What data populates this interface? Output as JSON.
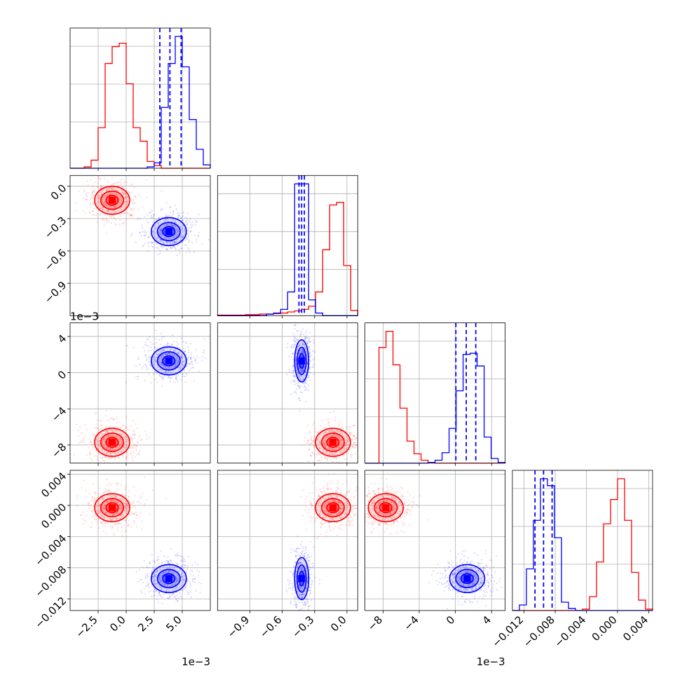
{
  "chart_data": {
    "type": "corner",
    "colors": {
      "series_a": "#ff0000",
      "series_b": "#0000ff",
      "grid": "#b0b0b0"
    },
    "series": [
      {
        "color": "#ff0000"
      },
      {
        "color": "#0000ff",
        "quantiles_marked": true
      }
    ],
    "parameters": [
      {
        "range": [
          -5.0,
          7.5
        ],
        "offset_label": "1e−3",
        "ticks": [
          -2.5,
          0.0,
          2.5,
          5.0
        ],
        "tick_labels": [
          "−2.5",
          "0.0",
          "2.5",
          "5.0"
        ],
        "hist": {
          "bins": [
            -5.0,
            -4.375,
            -3.75,
            -3.125,
            -2.5,
            -1.875,
            -1.25,
            -0.625,
            0.0,
            0.625,
            1.25,
            1.875,
            2.5,
            3.125,
            3.75,
            4.375,
            5.0,
            5.625,
            6.25,
            6.875,
            7.5
          ],
          "red": [
            0,
            0,
            2,
            12,
            60,
            155,
            180,
            185,
            125,
            60,
            40,
            10,
            4,
            0,
            0,
            0,
            0,
            0,
            0,
            0
          ],
          "blue": [
            0,
            0,
            0,
            0,
            0,
            0,
            0,
            0,
            0,
            0,
            0,
            2,
            8,
            90,
            155,
            195,
            150,
            72,
            28,
            5
          ]
        },
        "quantiles_blue": [
          3.0,
          3.9,
          4.9
        ],
        "center": {
          "red": -1.25,
          "blue": 3.8
        }
      },
      {
        "range": [
          -1.2,
          0.1
        ],
        "offset_label": "",
        "ticks": [
          -0.9,
          -0.6,
          -0.3,
          0.0
        ],
        "tick_labels": [
          "−0.9",
          "−0.6",
          "−0.3",
          "0.0"
        ],
        "hist": {
          "bins": [
            -1.2,
            -1.135,
            -1.07,
            -1.005,
            -0.94,
            -0.875,
            -0.81,
            -0.745,
            -0.68,
            -0.615,
            -0.55,
            -0.485,
            -0.42,
            -0.355,
            -0.29,
            -0.225,
            -0.16,
            -0.095,
            -0.03,
            0.035,
            0.1
          ],
          "red": [
            1,
            1,
            1,
            1,
            2,
            2,
            3,
            3,
            4,
            5,
            7,
            9,
            12,
            18,
            45,
            125,
            210,
            215,
            95,
            10
          ],
          "blue": [
            0,
            0,
            0,
            0,
            0,
            0,
            0,
            3,
            5,
            12,
            45,
            250,
            250,
            30,
            5,
            0,
            0,
            0,
            0,
            0
          ]
        },
        "quantiles_blue": [
          -0.445,
          -0.42,
          -0.395
        ],
        "center": {
          "red": -0.13,
          "blue": -0.42
        }
      },
      {
        "range": [
          -10.0,
          5.5
        ],
        "offset_label": "1e−3",
        "ticks": [
          -8,
          -4,
          0,
          4
        ],
        "tick_labels": [
          "−8",
          "−4",
          "0",
          "4"
        ],
        "hist": {
          "bins": [
            -10.0,
            -9.225,
            -8.45,
            -7.675,
            -6.9,
            -6.125,
            -5.35,
            -4.575,
            -3.8,
            -3.025,
            -2.25,
            -1.475,
            -0.7,
            0.075,
            0.85,
            1.625,
            2.4,
            3.175,
            3.95,
            4.725,
            5.5
          ],
          "red": [
            0,
            0,
            200,
            228,
            170,
            95,
            38,
            16,
            5,
            1,
            0,
            0,
            0,
            0,
            0,
            0,
            0,
            0,
            0,
            0
          ],
          "blue": [
            0,
            0,
            0,
            0,
            0,
            0,
            0,
            0,
            0,
            1,
            5,
            18,
            60,
            125,
            188,
            190,
            168,
            45,
            8,
            1
          ]
        },
        "quantiles_blue": [
          0.05,
          1.2,
          2.25
        ],
        "center": {
          "red": -7.7,
          "blue": 1.3
        }
      },
      {
        "range": [
          -0.0135,
          0.0045
        ],
        "offset_label": "",
        "ticks": [
          -0.012,
          -0.008,
          -0.004,
          0.0,
          0.004
        ],
        "tick_labels": [
          "−0.012",
          "−0.008",
          "−0.004",
          "0.000",
          "0.004"
        ],
        "ticks_y": [
          -0.012,
          -0.008,
          -0.004,
          0.0,
          0.004
        ],
        "tick_labels_y": [
          "−0.012",
          "−0.008",
          "−0.004",
          "0.000",
          "0.004"
        ],
        "hist": {
          "bins": [
            -0.0135,
            -0.0126,
            -0.0117,
            -0.0108,
            -0.0099,
            -0.009,
            -0.0081,
            -0.0072,
            -0.0063,
            -0.0054,
            -0.0045,
            -0.0036,
            -0.0027,
            -0.0018,
            -0.0009,
            0.0,
            0.0009,
            0.0018,
            0.0027,
            0.0036,
            0.0045
          ],
          "red": [
            0,
            0,
            0,
            0,
            0,
            0,
            0,
            0,
            0,
            0,
            2,
            20,
            70,
            125,
            160,
            190,
            130,
            55,
            15,
            2
          ],
          "blue": [
            0,
            8,
            60,
            130,
            190,
            180,
            105,
            12,
            3,
            0,
            0,
            0,
            0,
            0,
            0,
            0,
            0,
            0,
            0,
            0
          ]
        },
        "quantiles_blue": [
          -0.0106,
          -0.0095,
          -0.0084
        ],
        "center": {
          "red": -0.0003,
          "blue": -0.0094
        }
      }
    ],
    "bottom_offset_labels": [
      "1e−3",
      "",
      "1e−3",
      ""
    ],
    "left_offset_labels": [
      "",
      "",
      "1e−3",
      ""
    ],
    "grid": true,
    "legend": "none"
  }
}
